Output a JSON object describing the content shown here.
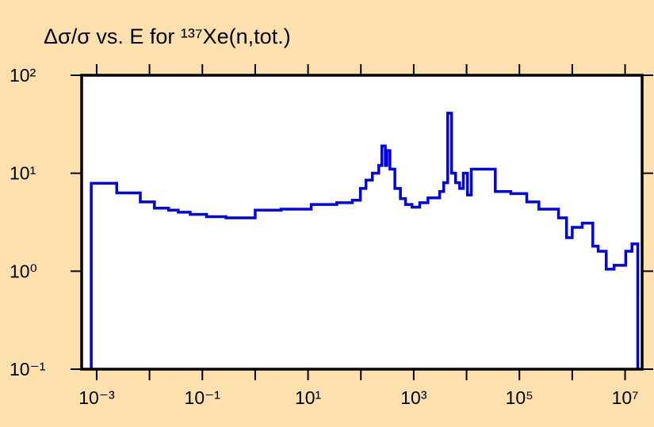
{
  "chart_data": {
    "type": "line",
    "title": "Δσ/σ vs. E for ¹³⁷Xe(n,tot.)",
    "xscale": "log",
    "yscale": "log",
    "step": true,
    "xlim": [
      0.00052,
      21000000
    ],
    "ylim": [
      0.1,
      100
    ],
    "xticks": [
      {
        "value": 0.001,
        "label": "10⁻³"
      },
      {
        "value": 0.1,
        "label": "10⁻¹"
      },
      {
        "value": 10,
        "label": "10¹"
      },
      {
        "value": 1000,
        "label": "10³"
      },
      {
        "value": 100000,
        "label": "10⁵"
      },
      {
        "value": 10000000,
        "label": "10⁷"
      }
    ],
    "yticks": [
      {
        "value": 0.1,
        "label": "10⁻¹"
      },
      {
        "value": 1,
        "label": "10⁰"
      },
      {
        "value": 10,
        "label": "10¹"
      },
      {
        "value": 100,
        "label": "10²"
      }
    ],
    "series": [
      {
        "color": "#0000e6",
        "x": [
          0.00079,
          0.0024,
          0.0067,
          0.0124,
          0.023,
          0.035,
          0.059,
          0.12,
          0.28,
          1.0,
          3.1,
          11.5,
          35,
          69,
          98,
          125,
          165,
          218,
          250,
          290,
          310,
          355,
          440,
          560,
          700,
          930,
          1300,
          1860,
          3100,
          3700,
          4400,
          5200,
          6200,
          7400,
          8700,
          10400,
          12300,
          35000,
          69000,
          138000,
          234000,
          550000,
          780000,
          1000000,
          1550000,
          2450000,
          3100000,
          4400000,
          6200000,
          10300000,
          13500000,
          17400000
        ],
        "values": [
          7.9,
          6.3,
          5.1,
          4.4,
          4.2,
          4.0,
          3.8,
          3.6,
          3.5,
          4.2,
          4.3,
          4.8,
          5.0,
          5.3,
          7.0,
          8.5,
          10,
          12,
          19,
          12,
          17,
          11,
          7,
          5.5,
          4.8,
          4.5,
          5.0,
          5.6,
          6.5,
          8,
          41,
          10,
          8,
          7,
          10,
          6,
          11,
          6.5,
          6.2,
          5.1,
          4.3,
          3.5,
          2.2,
          2.8,
          3.1,
          1.8,
          1.6,
          1.05,
          1.15,
          1.6,
          1.9,
          1.9
        ]
      }
    ]
  }
}
